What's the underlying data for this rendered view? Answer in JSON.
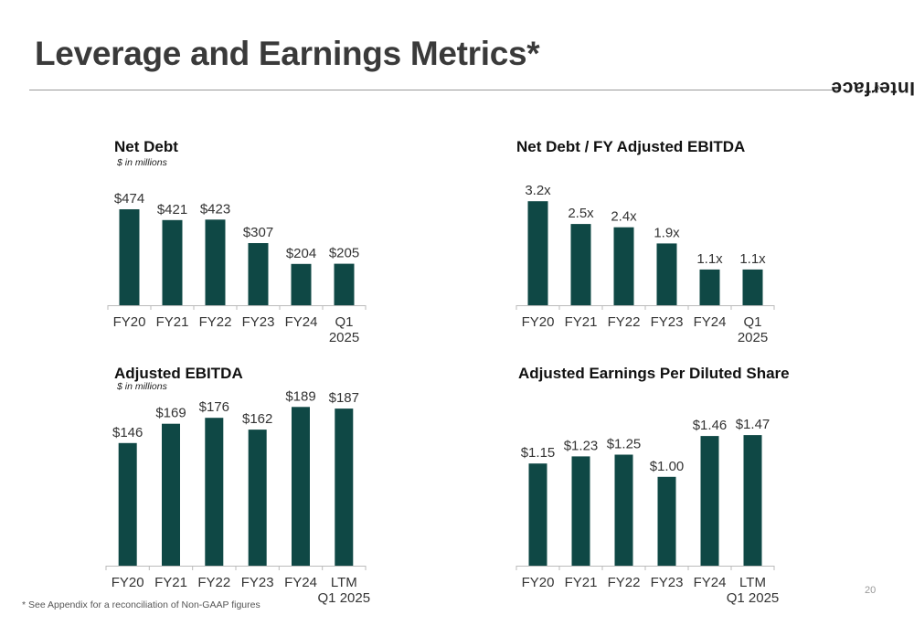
{
  "header": {
    "title": "Leverage and Earnings Metrics*",
    "brand": "Interface",
    "brand_mark": "®"
  },
  "colors": {
    "bar": "#0f4845",
    "axis": "#bbbbbb",
    "label": "#333333"
  },
  "footer": {
    "footnote": "* See Appendix for a reconciliation of Non-GAAP figures",
    "page_number": "20"
  },
  "chart_data": [
    {
      "type": "bar",
      "title": "Net Debt",
      "subtitle": "$ in millions",
      "categories": [
        [
          "FY20"
        ],
        [
          "FY21"
        ],
        [
          "FY22"
        ],
        [
          "FY23"
        ],
        [
          "FY24"
        ],
        [
          "Q1",
          "2025"
        ]
      ],
      "values": [
        474,
        421,
        423,
        307,
        204,
        205
      ],
      "labels": [
        "$474",
        "$421",
        "$423",
        "$307",
        "$204",
        "$205"
      ],
      "ylim": [
        0,
        560
      ]
    },
    {
      "type": "bar",
      "title": "Net Debt / FY Adjusted EBITDA",
      "subtitle": "",
      "categories": [
        [
          "FY20"
        ],
        [
          "FY21"
        ],
        [
          "FY22"
        ],
        [
          "FY23"
        ],
        [
          "FY24"
        ],
        [
          "Q1",
          "2025"
        ]
      ],
      "values": [
        3.2,
        2.5,
        2.4,
        1.9,
        1.1,
        1.1
      ],
      "labels": [
        "3.2x",
        "2.5x",
        "2.4x",
        "1.9x",
        "1.1x",
        "1.1x"
      ],
      "ylim": [
        0,
        3.6
      ]
    },
    {
      "type": "bar",
      "title": "Adjusted EBITDA",
      "subtitle": "$ in millions",
      "categories": [
        [
          "FY20"
        ],
        [
          "FY21"
        ],
        [
          "FY22"
        ],
        [
          "FY23"
        ],
        [
          "FY24"
        ],
        [
          "LTM",
          "Q1 2025"
        ]
      ],
      "values": [
        146,
        169,
        176,
        162,
        189,
        187
      ],
      "labels": [
        "$146",
        "$169",
        "$176",
        "$162",
        "$189",
        "$187"
      ],
      "ylim": [
        0,
        210
      ]
    },
    {
      "type": "bar",
      "title": "Adjusted Earnings Per Diluted Share",
      "subtitle": "",
      "categories": [
        [
          "FY20"
        ],
        [
          "FY21"
        ],
        [
          "FY22"
        ],
        [
          "FY23"
        ],
        [
          "FY24"
        ],
        [
          "LTM",
          "Q1 2025"
        ]
      ],
      "values": [
        1.15,
        1.23,
        1.25,
        1.0,
        1.46,
        1.47
      ],
      "labels": [
        "$1.15",
        "$1.23",
        "$1.25",
        "$1.00",
        "$1.46",
        "$1.47"
      ],
      "ylim": [
        0,
        1.8
      ]
    }
  ]
}
